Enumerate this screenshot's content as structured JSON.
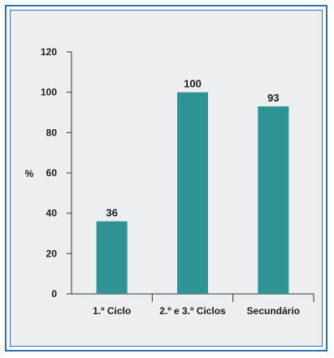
{
  "chart_data": {
    "type": "bar",
    "categories": [
      "1.º Ciclo",
      "2.º e 3.º Ciclos",
      "Secundário"
    ],
    "values": [
      36,
      100,
      93
    ],
    "data_labels": [
      "36",
      "100",
      "93"
    ],
    "ylabel": "%",
    "xlabel": "",
    "title": "",
    "ylim": [
      0,
      120
    ],
    "yticks": [
      0,
      20,
      40,
      60,
      80,
      100,
      120
    ],
    "yticks_labels": [
      "0",
      "20",
      "40",
      "60",
      "80",
      "100",
      "120"
    ],
    "grid": false,
    "legend": "none",
    "colors": {
      "bar": "#2f9393",
      "frame": "#2f6fb3",
      "background": "#edeeef",
      "axis": "#333333"
    }
  }
}
